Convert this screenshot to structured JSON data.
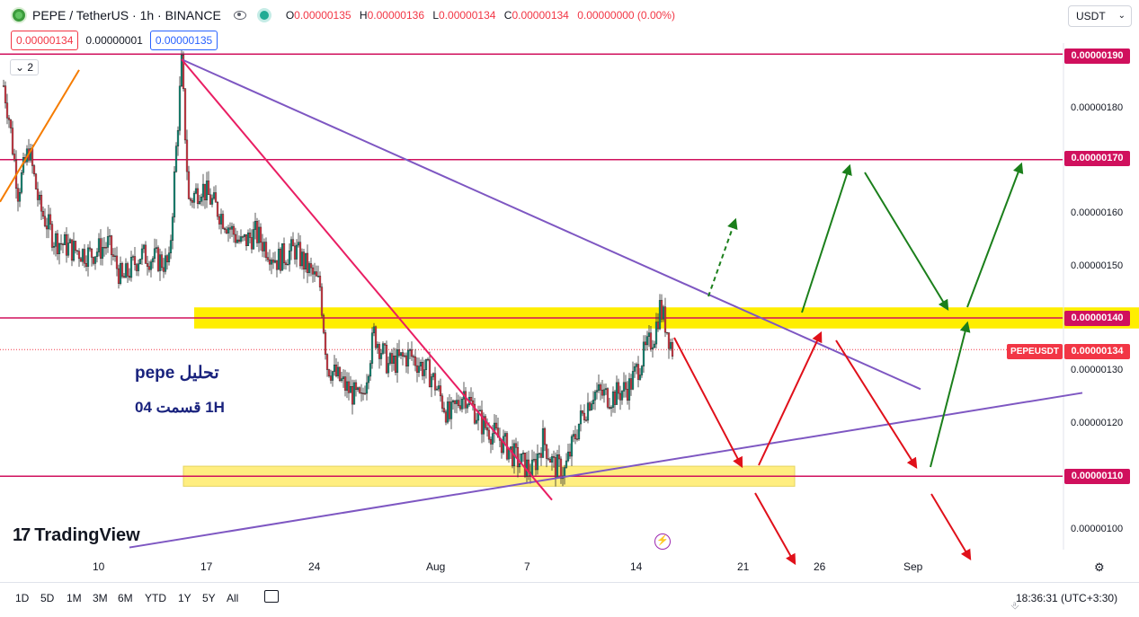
{
  "header": {
    "symbol": "PEPE / TetherUS · 1h · BINANCE",
    "ohlc": {
      "o_key": "O",
      "o": "0.00000135",
      "h_key": "H",
      "h": "0.00000136",
      "l_key": "L",
      "l": "0.00000134",
      "c_key": "C",
      "c": "0.00000134",
      "change": "0.00000000 (0.00%)"
    },
    "sell_price": "0.00000134",
    "spread": "0.00000001",
    "buy_price": "0.00000135",
    "currency": "USDT",
    "indicator_count": "2"
  },
  "price_axis": {
    "ticks": [
      "0.00000180",
      "0.00000160",
      "0.00000150",
      "0.00000130",
      "0.00000120",
      "0.00000100"
    ],
    "labels": {
      "l190": "0.00000190",
      "l170": "0.00000170",
      "l140": "0.00000140",
      "l134": "0.00000134",
      "l110": "0.00000110"
    },
    "symbol_tag": "PEPEUSDT"
  },
  "time_axis": [
    "10",
    "17",
    "24",
    "Aug",
    "7",
    "14",
    "21",
    "26",
    "Sep"
  ],
  "annotation": {
    "title": "تحلیل pepe",
    "subtitle": "1H  قسمت 04"
  },
  "branding": {
    "logo_mark": "17",
    "logo_text": "TradingView"
  },
  "bottom_bar": {
    "timeframes": [
      "1D",
      "5D",
      "1M",
      "3M",
      "6M",
      "YTD",
      "1Y",
      "5Y",
      "All"
    ],
    "clock": "18:36:31 (UTC+3:30)"
  },
  "chart_data": {
    "type": "candlestick",
    "symbol": "PEPEUSDT",
    "interval": "1h",
    "exchange": "BINANCE",
    "price_range": [
      9.6e-07,
      1.92e-06
    ],
    "horizontal_levels": [
      1.9e-06,
      1.7e-06,
      1.4e-06,
      1.1e-06
    ],
    "last_price": 1.34e-06,
    "close_path": [
      [
        0,
        1.84
      ],
      [
        3,
        1.78
      ],
      [
        8,
        1.64
      ],
      [
        14,
        1.72
      ],
      [
        20,
        1.61
      ],
      [
        28,
        1.55
      ],
      [
        38,
        1.53
      ],
      [
        48,
        1.52
      ],
      [
        58,
        1.54
      ],
      [
        66,
        1.47
      ],
      [
        76,
        1.52
      ],
      [
        86,
        1.51
      ],
      [
        92,
        1.5
      ],
      [
        96,
        1.72
      ],
      [
        99,
        1.88
      ],
      [
        103,
        1.62
      ],
      [
        110,
        1.65
      ],
      [
        120,
        1.6
      ],
      [
        132,
        1.54
      ],
      [
        140,
        1.56
      ],
      [
        152,
        1.51
      ],
      [
        162,
        1.53
      ],
      [
        170,
        1.49
      ],
      [
        176,
        1.46
      ],
      [
        180,
        1.31
      ],
      [
        190,
        1.27
      ],
      [
        199,
        1.24
      ],
      [
        206,
        1.37
      ],
      [
        214,
        1.31
      ],
      [
        226,
        1.33
      ],
      [
        238,
        1.29
      ],
      [
        248,
        1.21
      ],
      [
        256,
        1.26
      ],
      [
        266,
        1.2
      ],
      [
        276,
        1.17
      ],
      [
        286,
        1.13
      ],
      [
        294,
        1.11
      ],
      [
        300,
        1.17
      ],
      [
        306,
        1.12
      ],
      [
        312,
        1.11
      ],
      [
        320,
        1.2
      ],
      [
        328,
        1.26
      ],
      [
        338,
        1.25
      ],
      [
        348,
        1.27
      ],
      [
        356,
        1.33
      ],
      [
        362,
        1.37
      ],
      [
        365,
        1.42
      ],
      [
        368,
        1.39
      ],
      [
        372,
        1.34
      ]
    ],
    "drawings": [
      {
        "type": "trendline",
        "color": "#7e57c2",
        "from": [
          99,
          1.89
        ],
        "to": [
          510,
          1.265
        ]
      },
      {
        "type": "trendline",
        "color": "#7e57c2",
        "from": [
          70,
          0.965
        ],
        "to": [
          600,
          1.258
        ]
      },
      {
        "type": "trendline",
        "color": "#e91e63",
        "from": [
          99,
          1.89
        ],
        "to": [
          305,
          1.055
        ]
      },
      {
        "type": "trendline",
        "color": "#f57c00",
        "from": [
          -2,
          1.62
        ],
        "to": [
          42,
          1.87
        ]
      },
      {
        "type": "zone",
        "color": "#ffee00",
        "from": [
          106,
          1.42
        ],
        "to": [
          690,
          1.38
        ]
      },
      {
        "type": "zone",
        "color": "#ffee80",
        "from": [
          100,
          1.119
        ],
        "to": [
          440,
          1.081
        ]
      }
    ]
  }
}
